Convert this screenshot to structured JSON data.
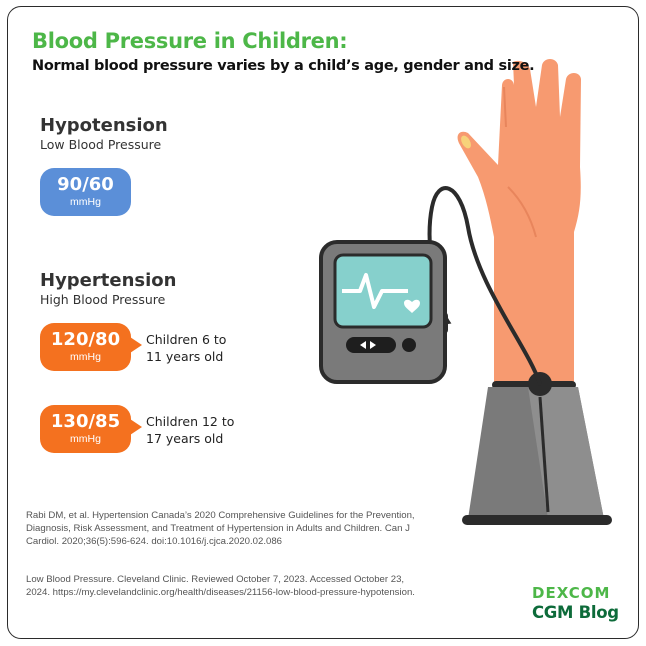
{
  "header": {
    "title": "Blood Pressure in Children:",
    "subtitle": "Normal blood pressure varies by a child’s age, gender and size."
  },
  "hypotension": {
    "heading": "Hypotension",
    "subheading": "Low Blood Pressure",
    "reading": {
      "value": "90/60",
      "unit": "mmHg"
    }
  },
  "hypertension": {
    "heading": "Hypertension",
    "subheading": "High Blood Pressure",
    "readings": [
      {
        "value": "120/80",
        "unit": "mmHg",
        "age_line1": "Children 6 to",
        "age_line2": "11 years old"
      },
      {
        "value": "130/85",
        "unit": "mmHg",
        "age_line1": "Children 12 to",
        "age_line2": "17 years old"
      }
    ]
  },
  "references": [
    "Rabi DM, et al. Hypertension Canada’s 2020 Comprehensive Guidelines for the Prevention, Diagnosis, Risk Assessment, and Treatment of Hypertension in Adults and Children. Can J Cardiol. 2020;36(5):596-624. doi:10.1016/j.cjca.2020.02.086",
    "Low Blood Pressure. Cleveland Clinic. Reviewed October 7, 2023. Accessed October 23, 2024. https://my.clevelandclinic.org/health/diseases/21156-low-blood-pressure-hypotension."
  ],
  "brand": {
    "name": "DEXCOM",
    "tagline": "CGM Blog"
  },
  "colors": {
    "title_green": "#4db748",
    "low_badge": "#5b8fd8",
    "high_badge": "#f4711f",
    "skin": "#f79a70",
    "cuff": "#7a7a7a",
    "monitor_screen": "#86d0cc",
    "brand_dark_green": "#0d6b3a"
  }
}
